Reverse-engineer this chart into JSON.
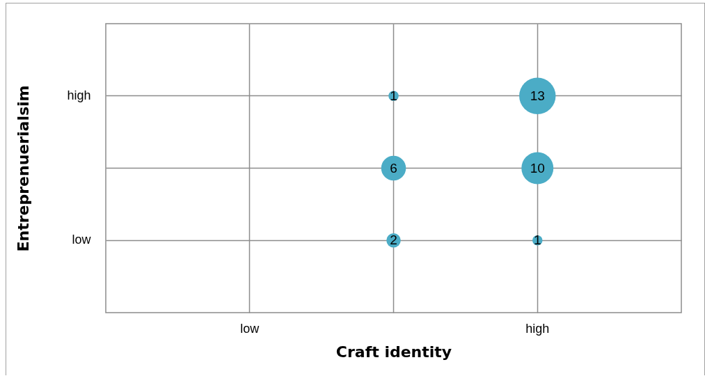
{
  "chart_data": {
    "type": "heatmap",
    "xlabel": "Craft identity",
    "ylabel": "Entreprenuerialsim",
    "categories": [
      "low",
      null,
      "high"
    ],
    "y_categories": [
      "high",
      null,
      "low"
    ],
    "cells": [
      [
        null,
        1,
        13
      ],
      [
        null,
        6,
        10
      ],
      [
        null,
        2,
        1
      ]
    ],
    "color": "#4bacc6",
    "data_labels": true,
    "grid": true
  }
}
